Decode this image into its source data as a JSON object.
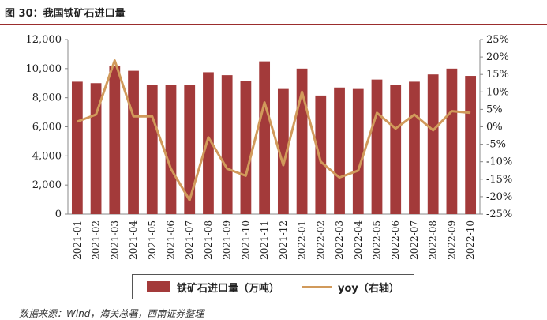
{
  "title": "图 30：我国铁矿石进口量",
  "source": "数据来源：Wind，海关总署，西南证券整理",
  "colors": {
    "bar": "#a33a3a",
    "line": "#d19a5b",
    "title_rule": "#9b2d2d"
  },
  "chart_data": {
    "type": "bar+line",
    "categories": [
      "2021-01",
      "2021-02",
      "2021-03",
      "2021-04",
      "2021-05",
      "2021-06",
      "2021-07",
      "2021-08",
      "2021-09",
      "2021-10",
      "2021-11",
      "2021-12",
      "2022-01",
      "2022-02",
      "2022-03",
      "2022-04",
      "2022-05",
      "2022-06",
      "2022-07",
      "2022-08",
      "2022-09",
      "2022-10"
    ],
    "series": [
      {
        "name": "铁矿石进口量（万吨）",
        "type": "bar",
        "axis": "left",
        "values": [
          9100,
          9000,
          10200,
          9850,
          8900,
          8900,
          8850,
          9750,
          9550,
          9150,
          10500,
          8600,
          10000,
          8150,
          8700,
          8600,
          9250,
          8900,
          9100,
          9600,
          10000,
          9500
        ]
      },
      {
        "name": "yoy（右轴）",
        "type": "line",
        "axis": "right",
        "values": [
          1.5,
          3.5,
          19,
          3,
          3,
          -12,
          -21,
          -3,
          -12,
          -14,
          7,
          -11,
          10,
          -10,
          -14.5,
          -12.5,
          4,
          -0.5,
          3.5,
          -1,
          4.5,
          4
        ]
      }
    ],
    "left_axis": {
      "min": 0,
      "max": 12000,
      "ticks": [
        "0",
        "2,000",
        "4,000",
        "6,000",
        "8,000",
        "10,000",
        "12,000"
      ]
    },
    "right_axis": {
      "min": -25,
      "max": 25,
      "ticks": [
        "-25%",
        "-20%",
        "-15%",
        "-10%",
        "-5%",
        "0%",
        "5%",
        "10%",
        "15%",
        "20%",
        "25%"
      ]
    },
    "legend_position": "bottom",
    "grid": false
  }
}
